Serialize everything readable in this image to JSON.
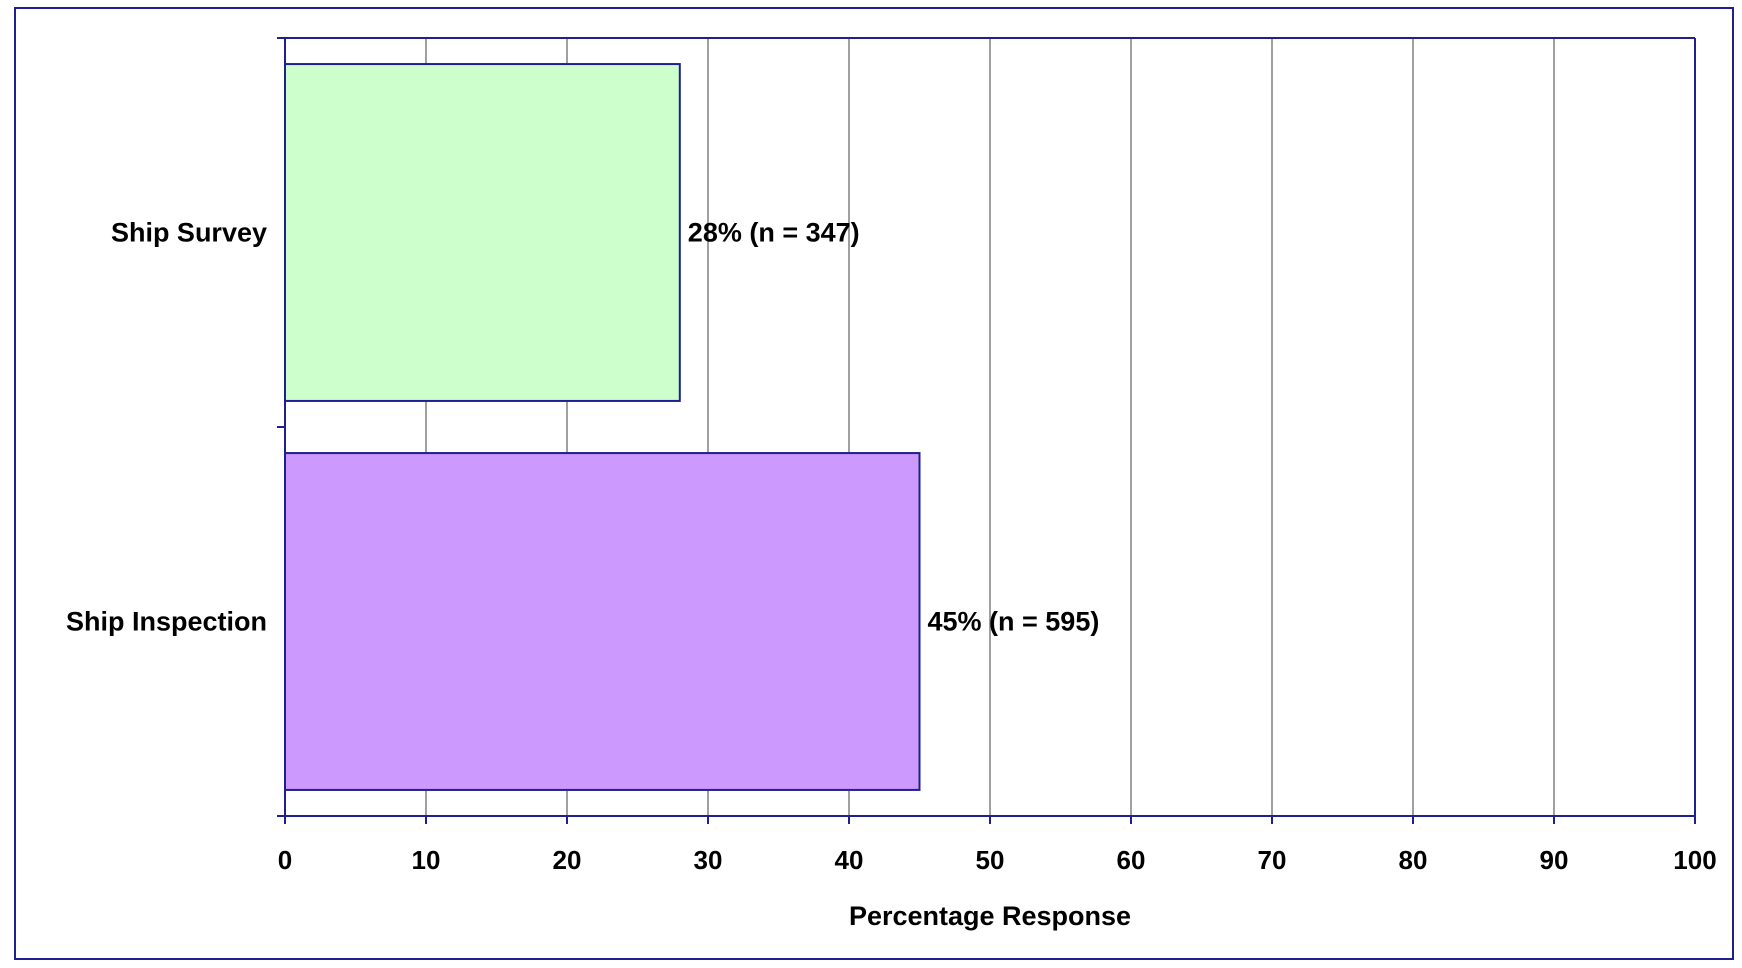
{
  "chart_data": {
    "type": "bar",
    "orientation": "horizontal",
    "title": "",
    "xlabel": "Percentage Response",
    "ylabel": "",
    "xlim": [
      0,
      100
    ],
    "x_ticks": [
      "0",
      "10",
      "20",
      "30",
      "40",
      "50",
      "60",
      "70",
      "80",
      "90",
      "100"
    ],
    "categories": [
      "Ship Survey",
      "Ship Inspection"
    ],
    "values": [
      28,
      45
    ],
    "data_labels": [
      "28% (n = 347)",
      "45% (n = 595)"
    ],
    "bar_colors": [
      "#ccffcc",
      "#cc99ff"
    ],
    "bar_border_color": "#1f1f8f",
    "grid": true,
    "grid_color": "#808080",
    "axis_color": "#1f1f8f",
    "frame_color": "#1f1f8f",
    "legend": "none"
  }
}
